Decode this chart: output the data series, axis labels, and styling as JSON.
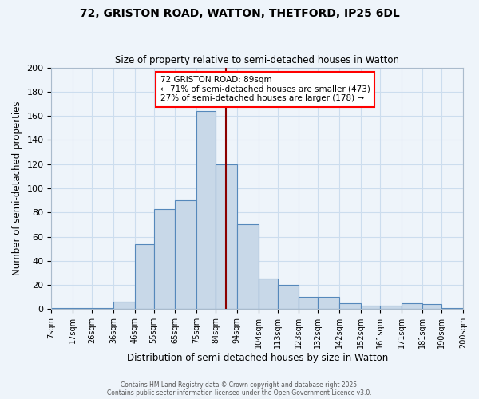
{
  "title": "72, GRISTON ROAD, WATTON, THETFORD, IP25 6DL",
  "subtitle": "Size of property relative to semi-detached houses in Watton",
  "xlabel": "Distribution of semi-detached houses by size in Watton",
  "ylabel": "Number of semi-detached properties",
  "bin_edges": [
    7,
    17,
    26,
    36,
    46,
    55,
    65,
    75,
    84,
    94,
    104,
    113,
    123,
    132,
    142,
    152,
    161,
    171,
    181,
    190,
    200
  ],
  "bar_heights": [
    1,
    1,
    1,
    6,
    54,
    83,
    90,
    164,
    120,
    70,
    25,
    20,
    10,
    10,
    5,
    3,
    3,
    5,
    4,
    1
  ],
  "bar_color": "#c8d8e8",
  "bar_edge_color": "#5588bb",
  "property_line_x": 89,
  "property_value": 89,
  "annotation_title": "72 GRISTON ROAD: 89sqm",
  "annotation_line1": "← 71% of semi-detached houses are smaller (473)",
  "annotation_line2": "27% of semi-detached houses are larger (178) →",
  "annotation_box_color": "white",
  "annotation_box_edge_color": "red",
  "vline_color": "#8b0000",
  "ylim": [
    0,
    200
  ],
  "yticks": [
    0,
    20,
    40,
    60,
    80,
    100,
    120,
    140,
    160,
    180,
    200
  ],
  "tick_labels": [
    "7sqm",
    "17sqm",
    "26sqm",
    "36sqm",
    "46sqm",
    "55sqm",
    "65sqm",
    "75sqm",
    "84sqm",
    "94sqm",
    "104sqm",
    "113sqm",
    "123sqm",
    "132sqm",
    "142sqm",
    "152sqm",
    "161sqm",
    "171sqm",
    "181sqm",
    "190sqm",
    "200sqm"
  ],
  "grid_color": "#ccddee",
  "background_color": "#eef4fa",
  "footer_line1": "Contains HM Land Registry data © Crown copyright and database right 2025.",
  "footer_line2": "Contains public sector information licensed under the Open Government Licence v3.0."
}
